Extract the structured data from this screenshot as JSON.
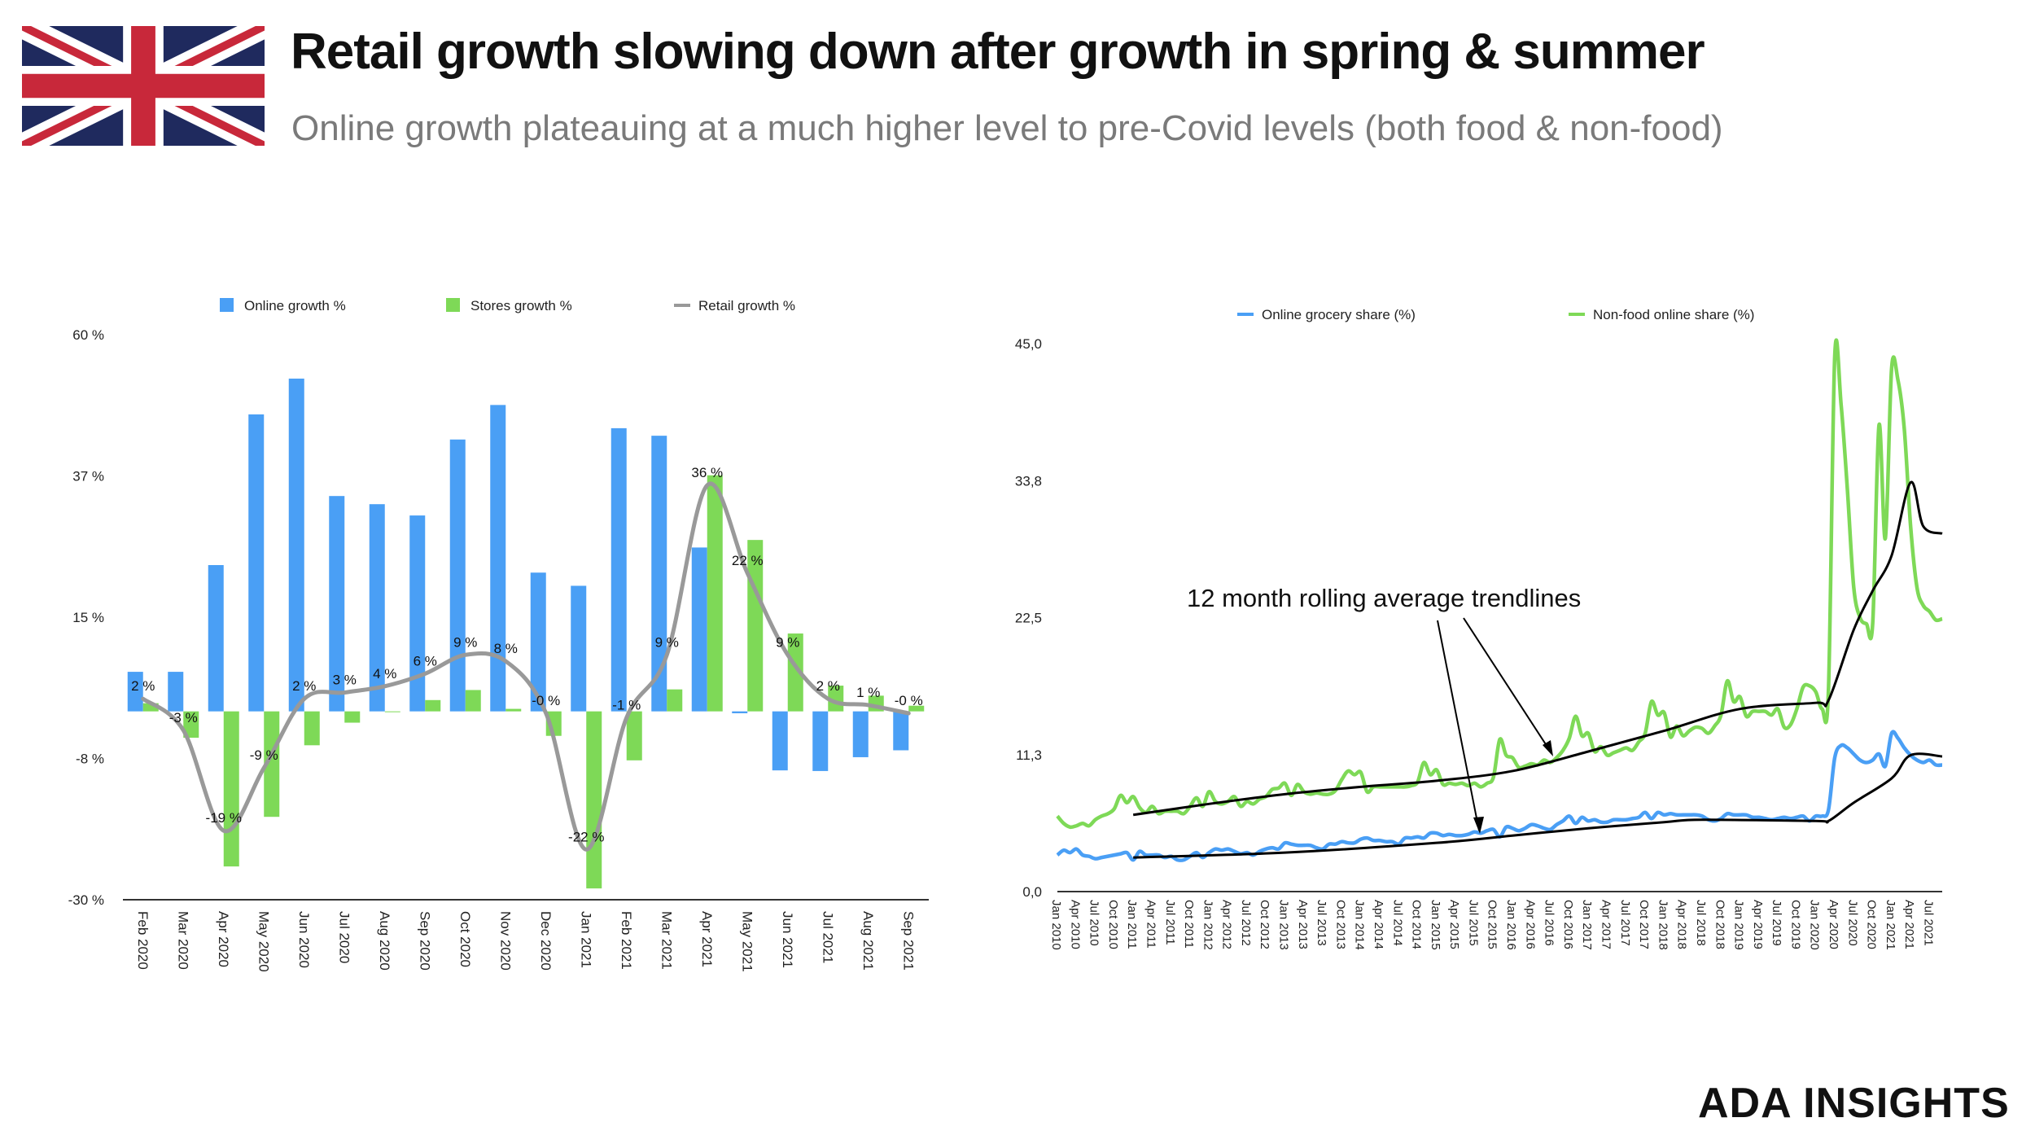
{
  "header": {
    "title": "Retail growth slowing down after growth in spring & summer",
    "subtitle": "Online growth plateauing at a much higher level to pre-Covid levels (both food & non-food)",
    "flag_icon": "uk-flag-icon"
  },
  "brand": "ADA INSIGHTS",
  "colors": {
    "online": "#4a9ff5",
    "stores": "#7ed957",
    "retail": "#999999",
    "trend": "#000000"
  },
  "chart_data": [
    {
      "type": "bar",
      "categories": [
        "Feb 2020",
        "Mar 2020",
        "Apr 2020",
        "May 2020",
        "Jun 2020",
        "Jul 2020",
        "Aug 2020",
        "Sep 2020",
        "Oct 2020",
        "Nov 2020",
        "Dec 2020",
        "Jan 2021",
        "Feb 2021",
        "Mar 2021",
        "Apr 2021",
        "May 2021",
        "Jun 2021",
        "Jul 2021",
        "Aug 2021",
        "Sep 2021"
      ],
      "ylim": [
        -30,
        60
      ],
      "yticks": [
        60,
        37.5,
        15,
        -7.5,
        -30
      ],
      "ytick_labels": [
        "60 %",
        "37 %",
        "15 %",
        "-8 %",
        "-30 %"
      ],
      "grid": false,
      "legend": "top",
      "series": [
        {
          "name": "Online growth %",
          "type": "bar",
          "values": [
            6.3,
            6.3,
            23.3,
            47.3,
            53,
            34.3,
            33,
            31.2,
            43.3,
            48.8,
            22.1,
            20,
            45.1,
            43.9,
            26.1,
            -0.3,
            -9.4,
            -9.5,
            -7.3,
            -6.2
          ]
        },
        {
          "name": "Stores growth %",
          "type": "bar",
          "values": [
            1.3,
            -4.2,
            -24.7,
            -16.8,
            -5.4,
            -1.8,
            -0.1,
            1.8,
            3.4,
            0.4,
            -3.9,
            -28.2,
            -7.8,
            3.5,
            37.6,
            27.3,
            12.4,
            4.1,
            2.5,
            0.9
          ]
        },
        {
          "name": "Retail growth %",
          "type": "line",
          "values": [
            2,
            -3,
            -19,
            -9,
            2,
            3,
            4,
            6,
            9,
            8,
            -0.3,
            -22,
            -1,
            9,
            36,
            22,
            9,
            2,
            1,
            -0.3
          ],
          "data_labels": [
            "2 %",
            "-3 %",
            "-19 %",
            "-9 %",
            "2 %",
            "3 %",
            "4 %",
            "6 %",
            "9 %",
            "8 %",
            "-0 %",
            "-22 %",
            "-1 %",
            "9 %",
            "36 %",
            "22 %",
            "9 %",
            "2 %",
            "1 %",
            "-0 %"
          ]
        }
      ]
    },
    {
      "type": "line",
      "x_start": "Jan 2010",
      "x_end": "Sep 2021",
      "x_tick_labels": [
        "Jan 2010",
        "Apr 2010",
        "Jul 2010",
        "Oct 2010",
        "Jan 2011",
        "Apr 2011",
        "Jul 2011",
        "Oct 2011",
        "Jan 2012",
        "Apr 2012",
        "Jul 2012",
        "Oct 2012",
        "Jan 2013",
        "Apr 2013",
        "Jul 2013",
        "Oct 2013",
        "Jan 2014",
        "Apr 2014",
        "Jul 2014",
        "Oct 2014",
        "Jan 2015",
        "Apr 2015",
        "Jul 2015",
        "Oct 2015",
        "Jan 2016",
        "Apr 2016",
        "Jul 2016",
        "Oct 2016",
        "Jan 2017",
        "Apr 2017",
        "Jul 2017",
        "Oct 2017",
        "Jan 2018",
        "Apr 2018",
        "Jul 2018",
        "Oct 2018",
        "Jan 2019",
        "Apr 2019",
        "Jul 2019",
        "Oct 2019",
        "Jan 2020",
        "Apr 2020",
        "Jul 2020",
        "Oct 2020",
        "Jan 2021",
        "Apr 2021",
        "Jul 2021"
      ],
      "ylim": [
        0,
        45
      ],
      "yticks": [
        0,
        11.25,
        22.5,
        33.75,
        45
      ],
      "ytick_labels": [
        "0,0",
        "11,3",
        "22,5",
        "33,8",
        "45,0"
      ],
      "grid": false,
      "legend": "top",
      "annotation": "12 month rolling average trendlines",
      "series": [
        {
          "name": "Online grocery share (%)",
          "frequency": "monthly",
          "values": [
            3.0,
            3.4,
            3.2,
            3.5,
            3.0,
            2.9,
            2.7,
            2.8,
            2.9,
            3.0,
            3.1,
            3.2,
            2.6,
            3.3,
            3.0,
            3.0,
            3.0,
            2.8,
            2.9,
            2.6,
            2.6,
            2.9,
            3.2,
            2.8,
            3.2,
            3.5,
            3.4,
            3.5,
            3.3,
            3.1,
            3.2,
            3.0,
            3.3,
            3.5,
            3.6,
            3.5,
            4.0,
            3.9,
            3.8,
            3.8,
            3.8,
            3.6,
            3.5,
            3.9,
            3.9,
            4.1,
            4.0,
            4.0,
            4.3,
            4.4,
            4.2,
            4.2,
            4.1,
            4.1,
            3.9,
            4.4,
            4.4,
            4.5,
            4.4,
            4.8,
            4.8,
            4.6,
            4.7,
            4.6,
            4.6,
            4.7,
            4.9,
            4.8,
            5.0,
            5.1,
            4.5,
            5.3,
            5.2,
            5.0,
            5.2,
            5.5,
            5.4,
            5.2,
            5.1,
            5.5,
            5.8,
            6.2,
            5.6,
            6.1,
            5.8,
            5.9,
            5.7,
            5.7,
            5.9,
            5.9,
            5.9,
            6.0,
            6.1,
            6.5,
            6.0,
            6.5,
            6.3,
            6.4,
            6.3,
            6.3,
            6.3,
            6.3,
            6.2,
            5.9,
            5.8,
            6.0,
            6.4,
            6.3,
            6.3,
            6.3,
            6.1,
            6.1,
            6.0,
            5.9,
            6.0,
            6.1,
            6.0,
            6.1,
            6.2,
            5.8,
            6.2,
            6.2,
            6.7,
            11.0,
            12.0,
            11.8,
            11.3,
            10.8,
            10.6,
            10.8,
            11.3,
            10.3,
            13.0,
            12.6,
            11.8,
            11.2,
            10.8,
            10.6,
            10.8,
            10.4,
            10.4
          ]
        },
        {
          "name": "Non-food online share (%)",
          "frequency": "monthly",
          "values": [
            6.2,
            5.6,
            5.3,
            5.4,
            5.6,
            5.4,
            5.9,
            6.2,
            6.4,
            6.8,
            7.9,
            7.3,
            7.8,
            6.9,
            6.5,
            7.0,
            6.4,
            6.6,
            6.6,
            6.6,
            6.4,
            7.0,
            7.7,
            7.0,
            8.2,
            7.4,
            7.2,
            7.4,
            7.8,
            7.0,
            7.4,
            7.2,
            7.6,
            7.8,
            8.4,
            8.5,
            8.9,
            7.9,
            8.8,
            8.2,
            8.0,
            8.1,
            8.0,
            8.0,
            8.3,
            9.2,
            9.9,
            9.6,
            9.8,
            8.2,
            8.6,
            8.6,
            8.6,
            8.6,
            8.6,
            8.6,
            8.7,
            9.0,
            10.6,
            9.6,
            10.0,
            8.8,
            8.9,
            8.8,
            8.9,
            8.7,
            8.9,
            8.6,
            8.9,
            9.4,
            12.5,
            11.2,
            11.0,
            10.2,
            10.3,
            10.5,
            10.4,
            10.8,
            10.6,
            11.0,
            11.6,
            12.6,
            14.4,
            12.8,
            13.0,
            11.5,
            11.9,
            11.2,
            11.4,
            11.6,
            11.8,
            11.6,
            12.3,
            13.0,
            15.6,
            14.5,
            14.7,
            12.7,
            13.6,
            12.8,
            13.2,
            13.5,
            13.4,
            13.0,
            13.6,
            14.5,
            17.3,
            15.6,
            16.0,
            14.4,
            14.8,
            14.8,
            14.8,
            14.5,
            15.0,
            13.5,
            13.7,
            15.0,
            16.8,
            16.9,
            16.4,
            15.0,
            16.5,
            44.0,
            40.0,
            33.0,
            25.0,
            22.5,
            22.0,
            22.0,
            38.3,
            29.0,
            43.0,
            42.0,
            38.0,
            30.0,
            25.0,
            23.5,
            23.0,
            22.3,
            22.4
          ]
        },
        {
          "role": "trendline",
          "of": "Online grocery share (%)",
          "points": [
            [
              "Jan 2011",
              2.8
            ],
            [
              "Jan 2013",
              3.2
            ],
            [
              "Jan 2015",
              4.0
            ],
            [
              "Jan 2016",
              4.6
            ],
            [
              "Jan 2017",
              5.2
            ],
            [
              "Jan 2018",
              5.7
            ],
            [
              "Jul 2018",
              5.9
            ],
            [
              "Jan 2020",
              5.8
            ],
            [
              "Mar 2020",
              5.8
            ],
            [
              "Jul 2020",
              7.3
            ],
            [
              "Jan 2021",
              9.3
            ],
            [
              "Apr 2021",
              11.2
            ],
            [
              "Sep 2021",
              11.1
            ]
          ]
        },
        {
          "role": "trendline",
          "of": "Non-food online share (%)",
          "points": [
            [
              "Jan 2011",
              6.3
            ],
            [
              "Jan 2012",
              7.2
            ],
            [
              "Jan 2013",
              8.0
            ],
            [
              "Jan 2014",
              8.6
            ],
            [
              "Jan 2015",
              9.1
            ],
            [
              "Jan 2016",
              9.9
            ],
            [
              "Jan 2017",
              11.5
            ],
            [
              "Jan 2018",
              13.2
            ],
            [
              "Jan 2019",
              15.0
            ],
            [
              "Jan 2020",
              15.5
            ],
            [
              "Mar 2020",
              15.7
            ],
            [
              "Jul 2020",
              21.5
            ],
            [
              "Oct 2020",
              24.7
            ],
            [
              "Jan 2021",
              27.6
            ],
            [
              "Apr 2021",
              33.6
            ],
            [
              "Jun 2021",
              30.0
            ],
            [
              "Sep 2021",
              29.4
            ]
          ]
        }
      ]
    }
  ]
}
